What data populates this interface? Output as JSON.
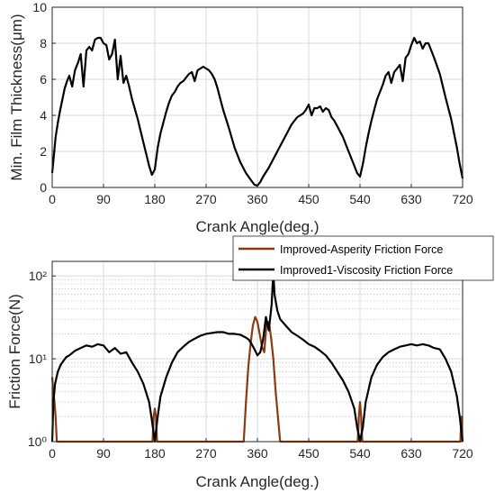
{
  "chart_data": [
    {
      "type": "line",
      "xlabel": "Crank Angle(deg.)",
      "ylabel": "Min. Film Thickness(μm)",
      "xlim": [
        0,
        720
      ],
      "ylim": [
        0,
        10
      ],
      "xticks": [
        0,
        90,
        180,
        270,
        360,
        450,
        540,
        630,
        720
      ],
      "yticks": [
        0,
        2,
        4,
        6,
        8,
        10
      ],
      "grid": true,
      "series": [
        {
          "color": "#000000",
          "x": [
            0,
            3,
            6,
            10,
            14,
            18,
            22,
            26,
            30,
            35,
            40,
            45,
            50,
            55,
            60,
            65,
            70,
            75,
            80,
            85,
            90,
            95,
            100,
            105,
            110,
            115,
            120,
            125,
            130,
            135,
            140,
            150,
            160,
            170,
            175,
            180,
            185,
            190,
            195,
            200,
            205,
            210,
            215,
            220,
            225,
            230,
            235,
            240,
            245,
            250,
            255,
            260,
            265,
            270,
            275,
            280,
            285,
            290,
            295,
            300,
            310,
            320,
            330,
            340,
            350,
            355,
            360,
            365,
            370,
            380,
            390,
            400,
            410,
            420,
            430,
            440,
            445,
            450,
            455,
            460,
            465,
            470,
            475,
            480,
            485,
            490,
            495,
            500,
            510,
            520,
            530,
            535,
            540,
            545,
            550,
            555,
            560,
            565,
            570,
            575,
            580,
            585,
            590,
            595,
            600,
            605,
            610,
            615,
            620,
            625,
            630,
            635,
            640,
            645,
            650,
            655,
            660,
            665,
            670,
            680,
            690,
            700,
            710,
            715,
            720
          ],
          "y": [
            0.8,
            1.8,
            2.8,
            3.6,
            4.3,
            4.9,
            5.5,
            5.9,
            6.2,
            5.6,
            6.5,
            6.9,
            7.4,
            5.6,
            7.6,
            7.8,
            7.6,
            8.2,
            8.3,
            8.3,
            8.0,
            7.9,
            7.1,
            7.4,
            8.2,
            6.0,
            7.3,
            5.8,
            6.2,
            5.6,
            4.9,
            3.8,
            2.5,
            1.2,
            0.7,
            1.0,
            2.2,
            3.0,
            3.6,
            4.2,
            4.7,
            5.1,
            5.3,
            5.6,
            5.8,
            5.9,
            6.1,
            6.3,
            6.4,
            5.9,
            6.5,
            6.6,
            6.7,
            6.6,
            6.5,
            6.3,
            6.0,
            5.5,
            4.9,
            4.3,
            3.3,
            2.2,
            1.4,
            0.8,
            0.35,
            0.15,
            0.1,
            0.3,
            0.6,
            1.1,
            1.7,
            2.3,
            2.9,
            3.5,
            3.9,
            4.1,
            4.3,
            4.6,
            4.0,
            4.4,
            4.4,
            4.5,
            4.2,
            4.4,
            4.3,
            3.9,
            3.7,
            3.4,
            2.8,
            2.0,
            1.2,
            0.8,
            0.6,
            1.3,
            2.2,
            3.0,
            3.7,
            4.3,
            4.9,
            5.3,
            5.7,
            6.2,
            6.4,
            5.8,
            6.4,
            6.6,
            6.8,
            5.9,
            7.2,
            7.4,
            7.9,
            8.3,
            8.0,
            8.1,
            7.7,
            8.0,
            8.0,
            7.6,
            7.2,
            6.3,
            5.0,
            3.8,
            2.2,
            1.3,
            0.5
          ]
        }
      ]
    },
    {
      "type": "line",
      "xlabel": "Crank Angle(deg.)",
      "ylabel": "Friction Force(N)",
      "xlim": [
        0,
        720
      ],
      "ylim": [
        1,
        150
      ],
      "yscale": "log",
      "xticks": [
        0,
        90,
        180,
        270,
        360,
        450,
        540,
        630,
        720
      ],
      "yticks": [
        1,
        10,
        100
      ],
      "yticklabels": [
        "10⁰",
        "10¹",
        "10²"
      ],
      "grid": true,
      "legend": "top-right",
      "series": [
        {
          "name": "Improved-Asperity Friction Force",
          "color": "#8b3a0f",
          "x": [
            0,
            2,
            4,
            6,
            8,
            176,
            178,
            180,
            182,
            184,
            336,
            340,
            344,
            348,
            352,
            356,
            360,
            364,
            368,
            372,
            376,
            380,
            384,
            388,
            392,
            396,
            400,
            536,
            538,
            540,
            542,
            544,
            716,
            718,
            720
          ],
          "y": [
            6,
            4,
            3,
            2,
            1,
            1,
            2,
            2.5,
            2,
            1,
            1,
            3,
            8,
            15,
            25,
            32,
            28,
            20,
            14,
            12,
            26,
            28,
            18,
            10,
            4,
            2,
            1,
            1,
            2,
            3,
            2,
            1,
            1,
            2,
            1
          ]
        },
        {
          "name": "Improved1-Viscosity Friction Force",
          "color": "#000000",
          "x": [
            0,
            2,
            5,
            10,
            15,
            20,
            25,
            30,
            40,
            50,
            60,
            70,
            80,
            90,
            100,
            110,
            120,
            130,
            140,
            150,
            160,
            170,
            175,
            180,
            185,
            190,
            200,
            210,
            220,
            230,
            240,
            250,
            260,
            270,
            280,
            290,
            300,
            310,
            320,
            330,
            340,
            345,
            350,
            355,
            360,
            365,
            370,
            375,
            380,
            385,
            388,
            390,
            395,
            400,
            410,
            420,
            430,
            440,
            450,
            460,
            470,
            480,
            490,
            500,
            510,
            520,
            530,
            535,
            540,
            545,
            550,
            560,
            570,
            580,
            590,
            600,
            610,
            620,
            630,
            640,
            650,
            660,
            670,
            680,
            690,
            700,
            710,
            715,
            720
          ],
          "y": [
            1,
            3,
            5,
            7,
            8.5,
            9.5,
            10.5,
            11,
            12.5,
            13.5,
            14.5,
            14,
            15,
            14.5,
            12,
            13.5,
            11.5,
            12,
            9,
            7,
            5,
            3,
            1.8,
            1,
            2,
            3.5,
            6,
            9,
            12,
            14,
            16,
            17.5,
            19,
            20,
            20.5,
            21,
            21,
            20,
            20,
            19.5,
            18,
            17,
            15,
            13,
            11,
            12,
            17,
            32,
            22,
            45,
            115,
            60,
            38,
            30,
            25,
            21,
            19,
            17,
            15,
            14,
            12.5,
            11,
            9,
            7,
            5.5,
            4,
            2.5,
            1.5,
            1,
            1.5,
            3,
            6,
            8.5,
            10.5,
            12,
            13,
            14,
            14.5,
            15,
            14.5,
            15,
            14.5,
            13.5,
            13,
            10,
            7,
            3.5,
            2,
            1
          ]
        }
      ]
    }
  ]
}
